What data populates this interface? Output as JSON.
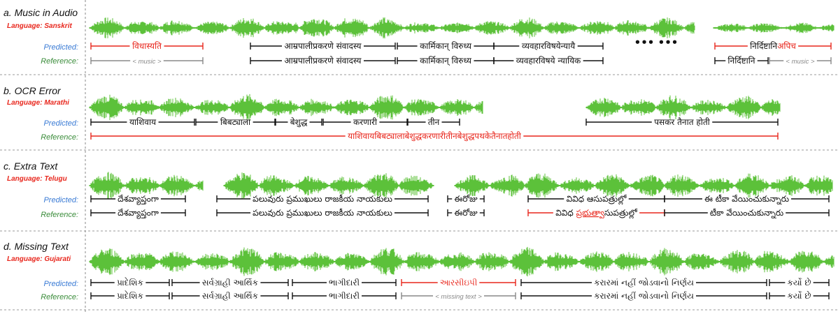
{
  "colors": {
    "waveform": "#5cc13a",
    "predicted_label": "#3a7bd5",
    "reference_label": "#3a8c3a",
    "error": "#e8261c",
    "placeholder": "#888888",
    "normal": "#111111"
  },
  "row_labels": {
    "predicted": "Predicted:",
    "reference": "Reference:"
  },
  "ellipsis": "•••  •••",
  "panels": [
    {
      "id": "a",
      "title": "a. Music in Audio",
      "language": "Language: Sanskrit",
      "predicted": [
        {
          "parts": [
            {
              "t": "विधास्यति",
              "c": "error"
            }
          ],
          "color": "error"
        },
        {
          "parts": [
            {
              "t": "आम्रपालीप्रकरणे संवादस्य",
              "c": "normal"
            }
          ]
        },
        {
          "parts": [
            {
              "t": "कार्मिकान् विरुध्य",
              "c": "normal"
            }
          ]
        },
        {
          "parts": [
            {
              "t": "व्यवहारविषयेन्यायै",
              "c": "normal"
            }
          ]
        },
        {
          "parts": [
            {
              "t": "निर्दिष्टानि",
              "c": "normal"
            },
            {
              "t": "अपिच",
              "c": "error"
            }
          ],
          "color": "error"
        }
      ],
      "reference": [
        {
          "parts": [
            {
              "t": "< music >",
              "c": "placeholder"
            }
          ],
          "color": "placeholder"
        },
        {
          "parts": [
            {
              "t": "आम्रपालीप्रकरणे संवादस्य",
              "c": "normal"
            }
          ]
        },
        {
          "parts": [
            {
              "t": "कार्मिकान् विरुध्य",
              "c": "normal"
            }
          ]
        },
        {
          "parts": [
            {
              "t": "व्यवहारविषये न्यायिक",
              "c": "normal"
            }
          ]
        },
        {
          "parts": [
            {
              "t": "निर्दिष्टानि",
              "c": "normal"
            }
          ]
        },
        {
          "parts": [
            {
              "t": "< music >",
              "c": "placeholder"
            }
          ],
          "color": "placeholder"
        }
      ]
    },
    {
      "id": "b",
      "title": "b. OCR Error",
      "language": "Language: Marathi",
      "predicted": [
        {
          "parts": [
            {
              "t": "याशिवाय",
              "c": "normal"
            }
          ]
        },
        {
          "parts": [
            {
              "t": "बिबट्याला",
              "c": "normal"
            }
          ]
        },
        {
          "parts": [
            {
              "t": "बेशुद्ध",
              "c": "normal"
            }
          ]
        },
        {
          "parts": [
            {
              "t": "करणारी",
              "c": "normal"
            }
          ]
        },
        {
          "parts": [
            {
              "t": "तीन",
              "c": "normal"
            }
          ]
        },
        {
          "parts": [
            {
              "t": "पसकर तैनात होती",
              "c": "normal"
            }
          ]
        }
      ],
      "reference": [
        {
          "parts": [
            {
              "t": "याशिवायबिबट्यालाबेशुद्धकरणारीतीनबेशुद्धपथकेतैनातहोती",
              "c": "error"
            }
          ],
          "color": "error"
        }
      ]
    },
    {
      "id": "c",
      "title": "c. Extra Text",
      "language": "Language: Telugu",
      "predicted": [
        {
          "parts": [
            {
              "t": "దేశవ్యాప్తంగా",
              "c": "normal"
            }
          ]
        },
        {
          "parts": [
            {
              "t": "పలువురు ప్రముఖులు రాజకీయ నాయకులు",
              "c": "normal"
            }
          ]
        },
        {
          "parts": [
            {
              "t": "ఈరోజు",
              "c": "normal"
            }
          ]
        },
        {
          "parts": [
            {
              "t": "వివిధ ఆసుపత్రుల్లో",
              "c": "normal"
            }
          ]
        },
        {
          "parts": [
            {
              "t": "ఈ టీకా వేయించుకున్నారు",
              "c": "normal"
            }
          ]
        }
      ],
      "reference": [
        {
          "parts": [
            {
              "t": "దేశవ్యాప్తంగా",
              "c": "normal"
            }
          ]
        },
        {
          "parts": [
            {
              "t": "పలువురు ప్రముఖులు రాజకీయ నాయకులు",
              "c": "normal"
            }
          ]
        },
        {
          "parts": [
            {
              "t": "ఈరోజు",
              "c": "normal"
            }
          ]
        },
        {
          "parts": [
            {
              "t": "వివిధ ",
              "c": "normal"
            },
            {
              "t": "ప్రభుత్వా",
              "c": "error_u"
            },
            {
              "t": "సుపత్రుల్లో",
              "c": "normal"
            }
          ],
          "color": "error"
        },
        {
          "parts": [
            {
              "t": "టీకా వేయించుకున్నారు",
              "c": "normal"
            }
          ]
        }
      ]
    },
    {
      "id": "d",
      "title": "d. Missing Text",
      "language": "Language: Gujarati",
      "predicted": [
        {
          "parts": [
            {
              "t": "પ્રાદેશિક",
              "c": "normal"
            }
          ]
        },
        {
          "parts": [
            {
              "t": "સર્વગ્રાહી આર્થિક",
              "c": "normal"
            }
          ]
        },
        {
          "parts": [
            {
              "t": "ભાગીદારી",
              "c": "normal"
            }
          ]
        },
        {
          "parts": [
            {
              "t": "આરસીઇપી",
              "c": "error"
            }
          ],
          "color": "error"
        },
        {
          "parts": [
            {
              "t": "કરારમાં નહીં જોડવાનો નિર્ણય",
              "c": "normal"
            }
          ]
        },
        {
          "parts": [
            {
              "t": "કર્યો છે",
              "c": "normal"
            }
          ]
        }
      ],
      "reference": [
        {
          "parts": [
            {
              "t": "પ્રાદેશિક",
              "c": "normal"
            }
          ]
        },
        {
          "parts": [
            {
              "t": "સર્વગ્રાહી આર્થિક",
              "c": "normal"
            }
          ]
        },
        {
          "parts": [
            {
              "t": "ભાગીદારી",
              "c": "normal"
            }
          ]
        },
        {
          "parts": [
            {
              "t": "< missing text >",
              "c": "placeholder"
            }
          ],
          "color": "placeholder"
        },
        {
          "parts": [
            {
              "t": "કરારમાં નહીં જોડવાનો નિર્ણય",
              "c": "normal"
            }
          ]
        },
        {
          "parts": [
            {
              "t": "કર્યો છે",
              "c": "normal"
            }
          ]
        }
      ]
    }
  ]
}
